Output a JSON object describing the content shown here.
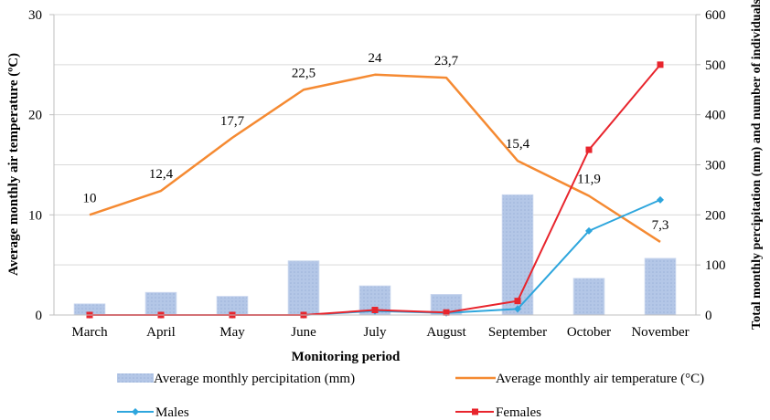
{
  "chart_data": {
    "type": "bar+line",
    "categories": [
      "March",
      "April",
      "May",
      "June",
      "July",
      "August",
      "September",
      "October",
      "November"
    ],
    "xlabel": "Monitoring period",
    "ylabel_left": "Average monthly air temperature (ºC)",
    "ylabel_right": "Total monthly percipitation (mm) and number of individuals",
    "ylim_left": [
      0,
      30
    ],
    "yticks_left": [
      0,
      10,
      20,
      30
    ],
    "ylim_right": [
      0,
      600
    ],
    "yticks_right": [
      0,
      100,
      200,
      300,
      400,
      500,
      600
    ],
    "grid": "horizontal",
    "legend_position": "bottom",
    "series": [
      {
        "name": "Average monthly percipitation (mm)",
        "type": "bar",
        "axis": "right",
        "color": "#b4c7e7",
        "values": [
          22,
          45,
          37,
          108,
          58,
          41,
          240,
          73,
          113
        ]
      },
      {
        "name": "Average monthly air temperature (°C)",
        "type": "line",
        "axis": "left",
        "color": "#f58a32",
        "values": [
          10,
          12.4,
          17.7,
          22.5,
          24,
          23.7,
          15.4,
          11.9,
          7.3
        ],
        "labels": [
          "10",
          "12,4",
          "17,7",
          "22,5",
          "24",
          "23,7",
          "15,4",
          "11,9",
          "7,3"
        ]
      },
      {
        "name": "Males",
        "type": "line",
        "axis": "right",
        "color": "#2ea6dd",
        "marker": "diamond",
        "values": [
          0,
          0,
          0,
          0,
          8,
          4,
          12,
          168,
          230
        ]
      },
      {
        "name": "Females",
        "type": "line",
        "axis": "right",
        "color": "#e8252d",
        "marker": "square",
        "values": [
          0,
          0,
          0,
          0,
          10,
          5,
          28,
          330,
          500
        ]
      }
    ]
  }
}
